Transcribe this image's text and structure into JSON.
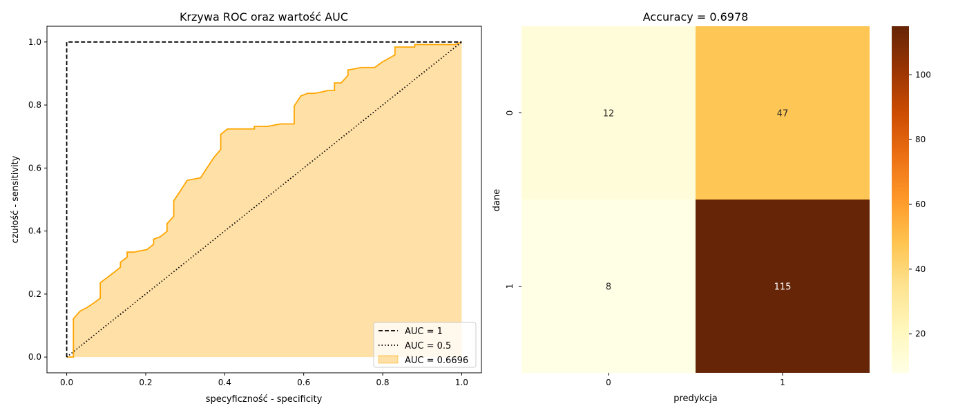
{
  "chart_data": [
    {
      "type": "line",
      "title": "Krzywa ROC oraz wartość AUC",
      "xlabel": "specyficzność - specificity",
      "ylabel": "czułość - sensitivity",
      "xlim": [
        -0.05,
        1.05
      ],
      "ylim": [
        -0.05,
        1.05
      ],
      "xticks": [
        0.0,
        0.2,
        0.4,
        0.6,
        0.8,
        1.0
      ],
      "xtick_labels": [
        "0.0",
        "0.2",
        "0.4",
        "0.6",
        "0.8",
        "1.0"
      ],
      "yticks": [
        0.0,
        0.2,
        0.4,
        0.6,
        0.8,
        1.0
      ],
      "ytick_labels": [
        "0.0",
        "0.2",
        "0.4",
        "0.6",
        "0.8",
        "1.0"
      ],
      "grid": false,
      "legend_position": "lower-right",
      "series": [
        {
          "name": "AUC = 1",
          "style": "dashed",
          "color": "#000000",
          "x": [
            0,
            0,
            1
          ],
          "y": [
            0,
            1,
            1
          ]
        },
        {
          "name": "AUC = 0.5",
          "style": "dotted",
          "color": "#000000",
          "x": [
            0,
            1
          ],
          "y": [
            0,
            1
          ]
        },
        {
          "name": "AUC = 0.6696",
          "style": "filled-area",
          "color": "#FFA500",
          "x": [
            0.0,
            0.017,
            0.017,
            0.034,
            0.051,
            0.068,
            0.085,
            0.085,
            0.102,
            0.119,
            0.136,
            0.136,
            0.153,
            0.153,
            0.17,
            0.186,
            0.203,
            0.22,
            0.22,
            0.237,
            0.254,
            0.254,
            0.271,
            0.271,
            0.288,
            0.305,
            0.322,
            0.339,
            0.356,
            0.373,
            0.39,
            0.39,
            0.407,
            0.424,
            0.441,
            0.458,
            0.475,
            0.475,
            0.492,
            0.508,
            0.525,
            0.542,
            0.559,
            0.576,
            0.576,
            0.593,
            0.61,
            0.627,
            0.644,
            0.661,
            0.678,
            0.678,
            0.695,
            0.712,
            0.712,
            0.729,
            0.746,
            0.763,
            0.78,
            0.797,
            0.814,
            0.831,
            0.831,
            0.847,
            0.864,
            0.881,
            0.881,
            0.898,
            0.915,
            0.932,
            0.949,
            0.966,
            0.983,
            1.0
          ],
          "y": [
            0.0,
            0.0,
            0.122,
            0.146,
            0.157,
            0.171,
            0.187,
            0.236,
            0.252,
            0.268,
            0.285,
            0.301,
            0.317,
            0.333,
            0.333,
            0.337,
            0.341,
            0.358,
            0.374,
            0.382,
            0.399,
            0.423,
            0.447,
            0.496,
            0.528,
            0.561,
            0.565,
            0.569,
            0.602,
            0.634,
            0.659,
            0.707,
            0.724,
            0.724,
            0.724,
            0.724,
            0.724,
            0.732,
            0.732,
            0.732,
            0.736,
            0.74,
            0.74,
            0.74,
            0.797,
            0.829,
            0.837,
            0.837,
            0.841,
            0.846,
            0.846,
            0.87,
            0.87,
            0.894,
            0.911,
            0.915,
            0.919,
            0.919,
            0.919,
            0.935,
            0.947,
            0.959,
            0.984,
            0.984,
            0.984,
            0.984,
            0.992,
            0.992,
            0.992,
            0.992,
            0.992,
            0.992,
            0.992,
            1.0
          ]
        }
      ]
    },
    {
      "type": "heatmap",
      "title": "Accuracy = 0.6978",
      "xlabel": "predykcja",
      "ylabel": "dane",
      "x_categories": [
        "0",
        "1"
      ],
      "y_categories": [
        "0",
        "1"
      ],
      "values": [
        [
          12,
          47
        ],
        [
          8,
          115
        ]
      ],
      "colormap": "YlOrBr",
      "colorbar": {
        "range": [
          8,
          115
        ],
        "ticks": [
          20,
          40,
          60,
          80,
          100
        ],
        "tick_labels": [
          "20",
          "40",
          "60",
          "80",
          "100"
        ]
      }
    }
  ]
}
